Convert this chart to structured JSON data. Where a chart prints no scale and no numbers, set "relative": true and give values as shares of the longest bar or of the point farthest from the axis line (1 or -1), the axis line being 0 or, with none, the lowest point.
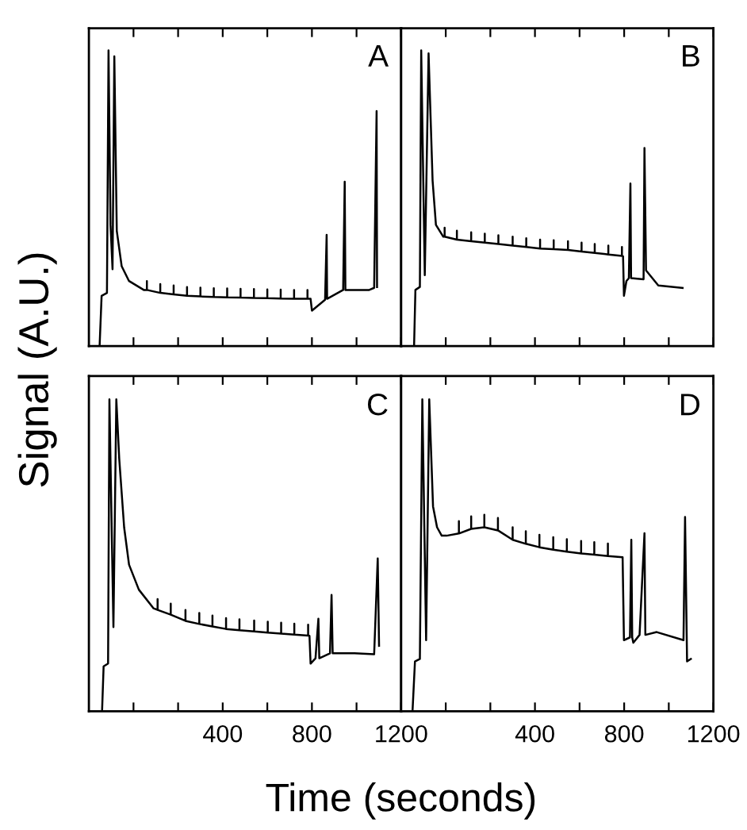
{
  "chart_data": [
    {
      "type": "line",
      "relative": true,
      "ylabel": "Signal (A.U.)",
      "annotations": [
        "A"
      ],
      "xlim": [
        -200,
        1200
      ],
      "xticks": [
        {
          "value": 0,
          "label": null
        },
        {
          "value": 200,
          "label": null
        },
        400,
        {
          "value": 600,
          "label": null
        },
        800,
        {
          "value": 1000,
          "label": null
        },
        1200
      ],
      "tick_labels": false,
      "series": [
        {
          "color": "#000000",
          "x": [
            -152,
            -143,
            -119,
            -112,
            -103,
            -94,
            -86,
            -75,
            -53,
            -20,
            46,
            60,
            60,
            60,
            120,
            120,
            120,
            180,
            180,
            180,
            240,
            240,
            240,
            300,
            300,
            300,
            360,
            360,
            360,
            420,
            420,
            420,
            480,
            480,
            480,
            540,
            540,
            540,
            600,
            600,
            600,
            660,
            660,
            660,
            720,
            720,
            720,
            780,
            780,
            780,
            794,
            800,
            859,
            866,
            868,
            940,
            947,
            950,
            1057,
            1079,
            1090,
            1092
          ],
          "values": [
            0,
            0.17,
            0.18,
            1.0,
            0.41,
            0.26,
            0.98,
            0.39,
            0.27,
            0.22,
            0.19,
            0.19,
            0.22,
            0.19,
            0.18,
            0.21,
            0.18,
            0.175,
            0.205,
            0.175,
            0.17,
            0.2,
            0.17,
            0.168,
            0.198,
            0.168,
            0.166,
            0.196,
            0.166,
            0.165,
            0.195,
            0.165,
            0.164,
            0.194,
            0.164,
            0.163,
            0.193,
            0.163,
            0.162,
            0.192,
            0.162,
            0.161,
            0.191,
            0.161,
            0.16,
            0.19,
            0.16,
            0.16,
            0.19,
            0.16,
            0.16,
            0.12,
            0.157,
            0.376,
            0.16,
            0.19,
            0.556,
            0.19,
            0.19,
            0.197,
            0.795,
            0.2
          ]
        }
      ]
    },
    {
      "type": "line",
      "relative": true,
      "annotations": [
        "B"
      ],
      "xlim": [
        -200,
        1200
      ],
      "xticks": [
        {
          "value": 0,
          "label": null
        },
        {
          "value": 200,
          "label": null
        },
        400,
        {
          "value": 600,
          "label": null
        },
        800,
        {
          "value": 1000,
          "label": null
        },
        1200
      ],
      "tick_labels": false,
      "series": [
        {
          "color": "#000000",
          "x": [
            -142,
            -136,
            -116,
            -110,
            -94,
            -77,
            -59,
            -44,
            -11,
            -5,
            -5,
            -5,
            50,
            50,
            50,
            114,
            114,
            114,
            175,
            175,
            175,
            236,
            236,
            236,
            300,
            300,
            300,
            361,
            361,
            361,
            423,
            423,
            423,
            484,
            484,
            484,
            548,
            548,
            548,
            609,
            609,
            609,
            668,
            668,
            668,
            729,
            729,
            729,
            790,
            790,
            790,
            795,
            799,
            810,
            821,
            828,
            831,
            887,
            891,
            898,
            953,
            1062
          ],
          "values": [
            0,
            0.19,
            0.2,
            1.0,
            0.24,
            0.99,
            0.56,
            0.41,
            0.37,
            0.37,
            0.4,
            0.37,
            0.36,
            0.39,
            0.36,
            0.355,
            0.385,
            0.355,
            0.35,
            0.38,
            0.35,
            0.345,
            0.375,
            0.345,
            0.34,
            0.37,
            0.34,
            0.335,
            0.365,
            0.335,
            0.33,
            0.36,
            0.33,
            0.328,
            0.358,
            0.328,
            0.325,
            0.355,
            0.325,
            0.32,
            0.35,
            0.32,
            0.315,
            0.345,
            0.315,
            0.31,
            0.34,
            0.31,
            0.305,
            0.335,
            0.305,
            0.304,
            0.17,
            0.22,
            0.23,
            0.55,
            0.23,
            0.226,
            0.67,
            0.256,
            0.205,
            0.197
          ]
        }
      ]
    },
    {
      "type": "line",
      "relative": true,
      "xlabel": "Time (seconds)",
      "annotations": [
        "C"
      ],
      "xlim": [
        -200,
        1200
      ],
      "xticks": [
        {
          "value": 0,
          "label": null
        },
        {
          "value": 200,
          "label": null
        },
        400,
        {
          "value": 600,
          "label": null
        },
        800,
        {
          "value": 1000,
          "label": null
        },
        1200
      ],
      "tick_labels": "x",
      "series": [
        {
          "color": "#000000",
          "x": [
            -174,
            -141,
            -134,
            -114,
            -108,
            -90,
            -77,
            -64,
            -42,
            -20,
            24,
            90,
            108,
            108,
            108,
            167,
            167,
            167,
            233,
            233,
            233,
            295,
            295,
            295,
            354,
            354,
            354,
            415,
            415,
            415,
            475,
            475,
            475,
            541,
            541,
            541,
            602,
            602,
            602,
            662,
            662,
            662,
            721,
            721,
            721,
            783,
            783,
            783,
            789,
            794,
            816,
            829,
            833,
            881,
            888,
            893,
            991,
            1079,
            1095,
            1101
          ],
          "values": [
            0,
            0,
            0.144,
            0.153,
            1.0,
            0.27,
            1.0,
            0.81,
            0.59,
            0.47,
            0.39,
            0.33,
            0.325,
            0.36,
            0.325,
            0.31,
            0.345,
            0.31,
            0.29,
            0.325,
            0.29,
            0.28,
            0.315,
            0.28,
            0.272,
            0.307,
            0.272,
            0.264,
            0.299,
            0.264,
            0.26,
            0.295,
            0.26,
            0.256,
            0.291,
            0.256,
            0.252,
            0.287,
            0.252,
            0.249,
            0.284,
            0.249,
            0.246,
            0.281,
            0.246,
            0.243,
            0.278,
            0.243,
            0.242,
            0.153,
            0.17,
            0.297,
            0.17,
            0.186,
            0.373,
            0.186,
            0.186,
            0.183,
            0.49,
            0.21
          ]
        }
      ]
    },
    {
      "type": "line",
      "relative": true,
      "annotations": [
        "D"
      ],
      "xlim": [
        -200,
        1200
      ],
      "xticks": [
        {
          "value": 0,
          "label": null
        },
        {
          "value": 200,
          "label": null
        },
        400,
        {
          "value": 600,
          "label": null
        },
        800,
        {
          "value": 1000,
          "label": null
        },
        1200
      ],
      "tick_labels": "x",
      "series": [
        {
          "color": "#000000",
          "x": [
            -149,
            -138,
            -116,
            -105,
            -88,
            -74,
            -57,
            -39,
            -18,
            4,
            59,
            59,
            59,
            114,
            114,
            114,
            173,
            173,
            173,
            234,
            234,
            234,
            300,
            300,
            300,
            359,
            359,
            359,
            420,
            420,
            420,
            482,
            482,
            482,
            543,
            543,
            543,
            607,
            607,
            607,
            666,
            666,
            666,
            727,
            727,
            727,
            793,
            799,
            826,
            832,
            836,
            841,
            869,
            891,
            895,
            946,
            1066,
            1073,
            1082,
            1099
          ],
          "values": [
            0,
            0.16,
            0.168,
            1.0,
            0.228,
            1.0,
            0.657,
            0.59,
            0.563,
            0.563,
            0.57,
            0.61,
            0.57,
            0.585,
            0.625,
            0.585,
            0.59,
            0.63,
            0.59,
            0.58,
            0.62,
            0.58,
            0.55,
            0.59,
            0.55,
            0.537,
            0.577,
            0.537,
            0.526,
            0.566,
            0.526,
            0.518,
            0.558,
            0.518,
            0.512,
            0.552,
            0.512,
            0.506,
            0.546,
            0.506,
            0.502,
            0.542,
            0.502,
            0.498,
            0.538,
            0.498,
            0.494,
            0.228,
            0.237,
            0.55,
            0.237,
            0.22,
            0.245,
            0.571,
            0.245,
            0.254,
            0.228,
            0.623,
            0.16,
            0.168
          ]
        }
      ]
    }
  ]
}
